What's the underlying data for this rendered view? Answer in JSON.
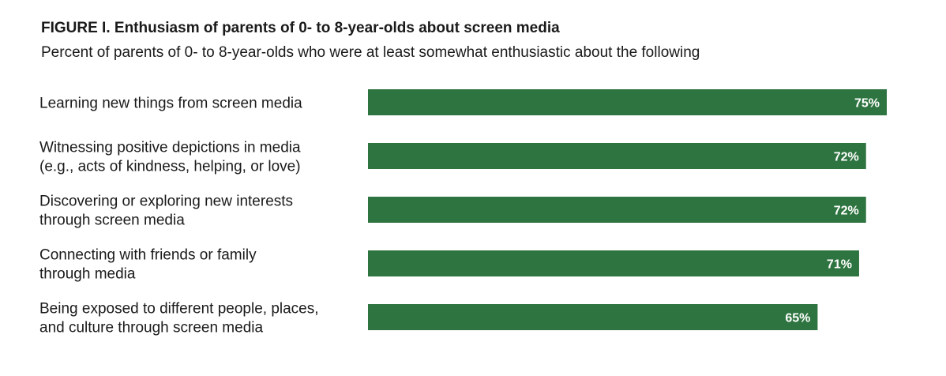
{
  "chart_data": {
    "type": "bar",
    "orientation": "horizontal",
    "title": "FIGURE I. Enthusiasm of parents of 0- to 8-year-olds about screen media",
    "subtitle": "Percent of parents of 0- to 8-year-olds who were at least somewhat enthusiastic about the following",
    "categories": [
      [
        "Learning new things from screen media"
      ],
      [
        "Witnessing positive depictions in media",
        "(e.g., acts of kindness, helping, or love)"
      ],
      [
        "Discovering or exploring new interests",
        "through screen media"
      ],
      [
        "Connecting with friends or family",
        "through media"
      ],
      [
        "Being exposed to different people, places,",
        "and culture through screen media"
      ]
    ],
    "values": [
      75,
      72,
      72,
      71,
      65
    ],
    "value_labels": [
      "75%",
      "72%",
      "72%",
      "71%",
      "65%"
    ],
    "xlim": [
      0,
      75
    ],
    "bar_color": "#2e7440",
    "grid": false,
    "legend": "none"
  }
}
